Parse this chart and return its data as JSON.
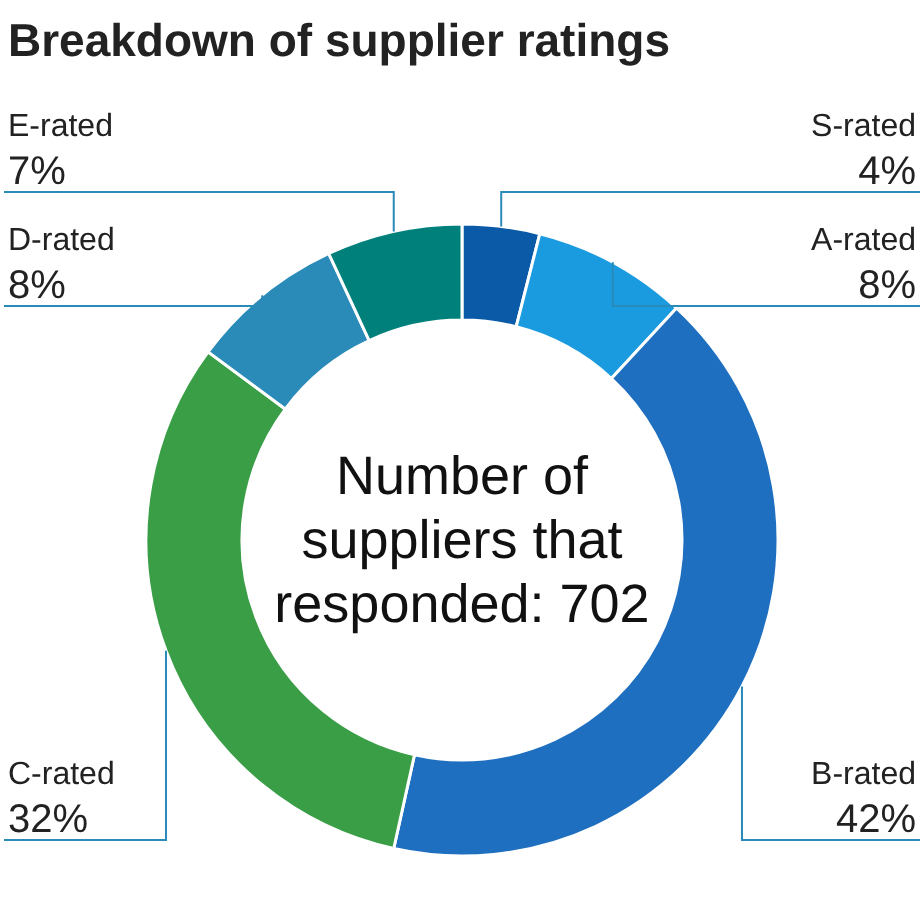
{
  "chart_data": {
    "type": "donut",
    "title": "Breakdown of supplier ratings",
    "categories": [
      "S-rated",
      "A-rated",
      "B-rated",
      "C-rated",
      "D-rated",
      "E-rated"
    ],
    "values": [
      4,
      8,
      42,
      32,
      8,
      7
    ],
    "value_labels": [
      "4%",
      "8%",
      "42%",
      "32%",
      "8%",
      "7%"
    ],
    "colors": [
      "#0a5aa8",
      "#1a9be0",
      "#1f6fc0",
      "#3a9e46",
      "#2a8ab8",
      "#00807a"
    ],
    "annotations": [
      "Number of suppliers that responded: 702"
    ]
  }
}
